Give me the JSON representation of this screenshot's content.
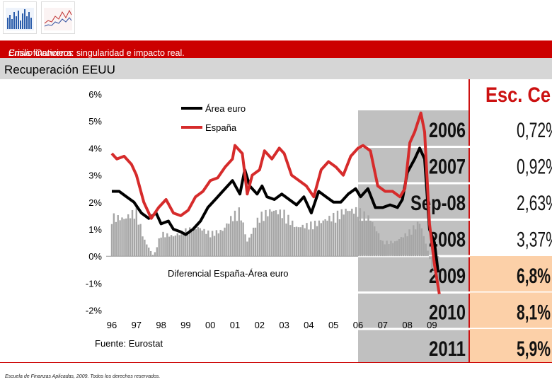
{
  "header": {
    "title": "Crisis financiera: singularidad e impacto real.",
    "author": "Emilio Ontiveros"
  },
  "slide_title": "Recuperación EEUU",
  "footer": "Escuela de Finanzas Aplicadas, 2009. Todos los derechos reservados.",
  "colors": {
    "red_bar": "#cc0000",
    "euro_line": "#000000",
    "spain_line": "#d62b2b",
    "diff_bars": "#a6a6a6",
    "forecast_bg": "#fcd0a8"
  },
  "chart_data": {
    "type": "line",
    "xlabel": "",
    "ylabel": "",
    "ylim": [
      -2,
      6
    ],
    "yticks": [
      "6%",
      "5%",
      "4%",
      "3%",
      "2%",
      "1%",
      "0%",
      "-1%",
      "-2%"
    ],
    "xticks": [
      "96",
      "97",
      "98",
      "99",
      "00",
      "01",
      "02",
      "03",
      "04",
      "05",
      "06",
      "07",
      "08",
      "09"
    ],
    "source": "Fuente: Eurostat",
    "annotation": "Diferencial España-Área euro",
    "series": [
      {
        "name": "Área euro",
        "x": [
          1996.0,
          1996.3,
          1996.6,
          1996.9,
          1997.2,
          1997.5,
          1997.8,
          1998.0,
          1998.3,
          1998.5,
          1998.8,
          1999.0,
          1999.3,
          1999.6,
          1999.9,
          2000.2,
          2000.5,
          2000.8,
          2000.9,
          2001.2,
          2001.4,
          2001.6,
          2001.9,
          2002.1,
          2002.3,
          2002.6,
          2002.9,
          2003.2,
          2003.5,
          2003.8,
          2004.1,
          2004.4,
          2004.7,
          2005.0,
          2005.3,
          2005.6,
          2005.9,
          2006.1,
          2006.4,
          2006.7,
          2007.0,
          2007.3,
          2007.6,
          2007.8,
          2008.0,
          2008.3,
          2008.5,
          2008.7,
          2008.9,
          2009.1,
          2009.25
        ],
        "values": [
          2.4,
          2.4,
          2.2,
          2.0,
          1.6,
          1.4,
          1.6,
          1.2,
          1.3,
          1.0,
          0.9,
          0.8,
          1.0,
          1.3,
          1.8,
          2.1,
          2.4,
          2.7,
          2.8,
          2.3,
          3.2,
          2.6,
          2.3,
          2.6,
          2.2,
          2.1,
          2.3,
          2.1,
          1.9,
          2.2,
          1.6,
          2.4,
          2.2,
          2.0,
          2.0,
          2.3,
          2.5,
          2.2,
          2.5,
          1.8,
          1.8,
          1.9,
          1.8,
          2.1,
          3.1,
          3.6,
          4.0,
          3.6,
          1.0,
          0.5,
          -0.6
        ]
      },
      {
        "name": "España",
        "x": [
          1996.0,
          1996.2,
          1996.5,
          1996.8,
          1997.0,
          1997.3,
          1997.6,
          1997.9,
          1998.2,
          1998.5,
          1998.8,
          1999.1,
          1999.4,
          1999.7,
          2000.0,
          2000.3,
          2000.6,
          2000.9,
          2001.0,
          2001.3,
          2001.5,
          2001.7,
          2002.0,
          2002.2,
          2002.5,
          2002.8,
          2003.0,
          2003.3,
          2003.6,
          2003.9,
          2004.2,
          2004.5,
          2004.8,
          2005.1,
          2005.4,
          2005.7,
          2006.0,
          2006.2,
          2006.5,
          2006.8,
          2007.1,
          2007.4,
          2007.7,
          2007.9,
          2008.1,
          2008.3,
          2008.55,
          2008.7,
          2008.9,
          2009.1,
          2009.3
        ],
        "values": [
          3.8,
          3.6,
          3.7,
          3.4,
          3.0,
          2.0,
          1.4,
          1.8,
          2.1,
          1.6,
          1.5,
          1.7,
          2.2,
          2.4,
          2.8,
          2.9,
          3.3,
          3.6,
          4.1,
          3.8,
          2.3,
          3.0,
          3.2,
          3.9,
          3.6,
          4.0,
          3.8,
          3.0,
          2.8,
          2.6,
          2.2,
          3.2,
          3.5,
          3.3,
          3.0,
          3.7,
          4.0,
          4.1,
          3.9,
          2.6,
          2.4,
          2.4,
          2.2,
          2.5,
          4.2,
          4.6,
          5.3,
          4.6,
          1.2,
          -0.3,
          -1.4
        ]
      },
      {
        "name": "Diferencial España-Área euro",
        "type": "bar",
        "x": [
          1996.0,
          1996.5,
          1997.0,
          1997.3,
          1997.7,
          1998.0,
          1998.5,
          1999.0,
          1999.5,
          2000.0,
          2000.5,
          2000.9,
          2001.2,
          2001.5,
          2002.0,
          2002.5,
          2003.0,
          2003.5,
          2004.0,
          2004.5,
          2005.0,
          2005.5,
          2006.0,
          2006.5,
          2007.0,
          2007.5,
          2008.0,
          2008.5,
          2008.8,
          2009.0,
          2009.25
        ],
        "values": [
          1.4,
          1.3,
          1.6,
          0.6,
          0.0,
          0.8,
          0.7,
          0.9,
          1.0,
          0.8,
          0.9,
          1.4,
          1.6,
          0.5,
          1.4,
          1.6,
          1.5,
          1.0,
          1.1,
          1.2,
          1.4,
          1.6,
          1.6,
          1.3,
          0.5,
          0.5,
          0.8,
          1.2,
          0.3,
          -0.4,
          -0.9
        ]
      }
    ],
    "forecast_table": {
      "header": "Esc. Ce",
      "rows": [
        {
          "label": "2006",
          "value": "0,72%",
          "highlight": false
        },
        {
          "label": "2007",
          "value": "0,92%",
          "highlight": false
        },
        {
          "label": "Sep-08",
          "value": "2,63%",
          "highlight": false
        },
        {
          "label": "2008",
          "value": "3,37%",
          "highlight": false
        },
        {
          "label": "2009",
          "value": "6,8%",
          "highlight": true
        },
        {
          "label": "2010",
          "value": "8,1%",
          "highlight": true
        },
        {
          "label": "2011",
          "value": "5,9%",
          "highlight": true
        }
      ]
    }
  }
}
